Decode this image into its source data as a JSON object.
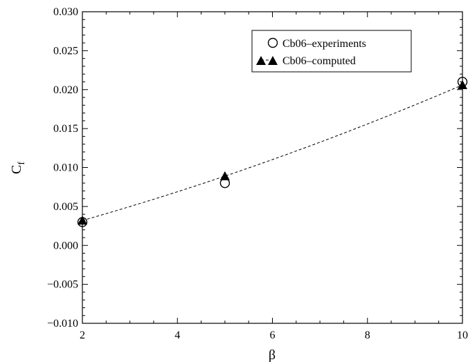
{
  "chart_data": {
    "type": "scatter",
    "xlabel": "β",
    "ylabel": "C",
    "ylabel_subscript": "f",
    "xlim": [
      2,
      10
    ],
    "ylim": [
      -0.01,
      0.03
    ],
    "x_ticks": [
      2,
      4,
      6,
      8,
      10
    ],
    "x_tick_labels": [
      "2",
      "4",
      "6",
      "8",
      "10"
    ],
    "y_ticks": [
      -0.01,
      -0.005,
      0.0,
      0.005,
      0.01,
      0.015,
      0.02,
      0.025,
      0.03
    ],
    "y_tick_labels": [
      "−0.010",
      "−0.005",
      "0.000",
      "0.005",
      "0.010",
      "0.015",
      "0.020",
      "0.025",
      "0.030"
    ],
    "grid": false,
    "legend_position": "top-right",
    "series": [
      {
        "name": "Cb06–experiments",
        "marker": "open-circle",
        "line": "none",
        "color": "#000000",
        "x": [
          2,
          5,
          10
        ],
        "y": [
          0.003,
          0.008,
          0.021
        ]
      },
      {
        "name": "Cb06–computed",
        "marker": "filled-triangle",
        "line": "dashed",
        "color": "#000000",
        "x": [
          2,
          5,
          10
        ],
        "y": [
          0.0032,
          0.0089,
          0.0206
        ]
      }
    ]
  }
}
